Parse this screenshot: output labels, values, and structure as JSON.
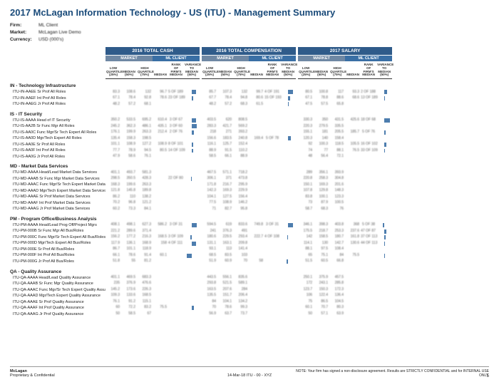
{
  "title": "2017 McLagan Information Technology - US (ITU) - Management Summary",
  "meta": {
    "firmLabel": "Firm:",
    "firm": "ML Client",
    "marketLabel": "Market:",
    "market": "McLagan Live Demo",
    "currencyLabel": "Currency:",
    "currency": "USD (000's)"
  },
  "bands": [
    {
      "title": "2016 TOTAL CASH"
    },
    {
      "title": "2016 TOTAL COMPENSATION"
    },
    {
      "title": "2017 SALARY"
    }
  ],
  "subMarket": "MARKET",
  "subClient": "ML CLIENT",
  "colHeaders": {
    "lowQ": "LOW\nQUARTILE\n(25%)",
    "med": "MEDIAN\n(50%)",
    "highQ": "HIGH\nQUARTILE\n(75%)",
    "clMed": "MEDIAN",
    "rank": "RANK OF\nFIRM'S\nMEDIAN",
    "var": "VARIANCE\nTO MEDIAN\n(50%)"
  },
  "groups": [
    {
      "name": "IN - Technology Infrastructure",
      "roles": [
        {
          "name": "ITU-IN-AAEE Sr Prof All Roles",
          "vals": [
            83.3,
            108.6,
            132.0,
            96.7,
            "5 OF 189",
            "",
            85.7,
            107.3,
            132.0,
            99.7,
            "4 OF 191",
            "",
            80.5,
            100.8,
            117.0,
            93.3,
            "2 OF 188",
            ""
          ],
          "bars": [
            0.25,
            0.32,
            0.18
          ]
        },
        {
          "name": "ITU-IN-AAEF Int Prof All Roles",
          "vals": [
            67.1,
            78.4,
            92.8,
            78.6,
            "23 OF 189",
            "",
            67.7,
            78.4,
            94.8,
            80.6,
            "15 OF 193",
            "",
            67.1,
            78.8,
            88.6,
            68.6,
            "13 OF 189",
            ""
          ],
          "bars": [
            0.1,
            0.12,
            0.06
          ]
        },
        {
          "name": "ITU-IN-AAEG Jr Prof All Roles",
          "vals": [
            48.2,
            57.2,
            68.1,
            "",
            "",
            "",
            48.2,
            57.2,
            68.3,
            61.5,
            "",
            "",
            47.5,
            57.5,
            65.8,
            "",
            "",
            ""
          ],
          "bars": [
            0.0,
            0.05,
            0.0
          ]
        }
      ]
    },
    {
      "name": "IS - IT Security",
      "roles": [
        {
          "name": "ITU-IS-AAAA Head of IT Security",
          "vals": [
            350.2,
            533.5,
            695.2,
            610.4,
            "3 OF 67",
            "",
            403.5,
            620.0,
            808.5,
            "",
            "",
            "",
            330.3,
            350.0,
            431.5,
            425.6,
            "18 OF 68",
            ""
          ],
          "bars": [
            0.28,
            0.0,
            0.35
          ]
        },
        {
          "name": "ITU-IS-AA2B Sr Func Mgr All Roles",
          "vals": [
            245.2,
            362.3,
            486.1,
            435.1,
            "3 OF 60",
            "",
            283.3,
            421.7,
            569.2,
            "",
            "",
            "",
            220.3,
            279.5,
            335.5,
            "",
            "",
            ""
          ],
          "bars": [
            0.3,
            0.0,
            0.0
          ]
        },
        {
          "name": "ITU-IS-AA0C Func Mgr/Sr Tech Expert All Roles",
          "vals": [
            176.1,
            199.9,
            263.3,
            212.4,
            "2 OF 76",
            "",
            218.0,
            271.0,
            393.2,
            "",
            "",
            "",
            155.1,
            181.0,
            205.5,
            185.7,
            "5 OF 76",
            ""
          ],
          "bars": [
            0.15,
            0.0,
            0.1
          ]
        },
        {
          "name": "ITU-IS-AA0D Mgr/Tech Expert All Roles",
          "vals": [
            135.4,
            158.3,
            198.5,
            "",
            "",
            "",
            156.6,
            183.5,
            240.8,
            169.4,
            "5 OF 78",
            "",
            120.3,
            140.0,
            158.4,
            "",
            "",
            ""
          ],
          "bars": [
            0.0,
            0.18,
            0.0
          ]
        },
        {
          "name": "ITU-IS-AA0E Sr Prof All Roles",
          "vals": [
            101.1,
            108.9,
            127.2,
            108.9,
            "8 OF 101",
            "",
            116.1,
            125.7,
            152.4,
            "",
            "",
            "",
            92.0,
            100.3,
            118.5,
            105.5,
            "16 OF 102",
            ""
          ],
          "bars": [
            0.08,
            0.0,
            0.14
          ]
        },
        {
          "name": "ITU-IS-AA0F Int Prof All Roles",
          "vals": [
            77.7,
            78.9,
            94.5,
            80.5,
            "14 OF 109",
            "",
            88.9,
            91.5,
            110.2,
            "",
            "",
            "",
            74.0,
            77.0,
            88.1,
            76.5,
            "33 OF 109",
            ""
          ],
          "bars": [
            0.1,
            0.0,
            0.06
          ]
        },
        {
          "name": "ITU-IS-AA0G Jr Prof All Roles",
          "vals": [
            47.9,
            58.6,
            76.1,
            "",
            "",
            "",
            58.5,
            66.1,
            88.9,
            "",
            "",
            "",
            48.0,
            56.4,
            72.1,
            "",
            "",
            ""
          ],
          "bars": [
            0.0,
            0.0,
            0.0
          ]
        }
      ]
    },
    {
      "name": "MD - Market Data Services",
      "roles": [
        {
          "name": "ITU-MD-AAAA Head/Lead Market Data Services",
          "vals": [
            401.1,
            493.7,
            581.3,
            "",
            "",
            "",
            467.5,
            571.1,
            718.2,
            "",
            "",
            "",
            289.0,
            356.1,
            393.9,
            "",
            "",
            ""
          ],
          "bars": [
            0.0,
            0.0,
            0.0
          ]
        },
        {
          "name": "ITU-MD-AAAB Sr Func Mgr Market Data Services",
          "vals": [
            298.5,
            350.5,
            428.3,
            "",
            "22 OF 80",
            "",
            306.1,
            371.0,
            473.8,
            "",
            "",
            "",
            220.8,
            258.3,
            304.8,
            "",
            "",
            ""
          ],
          "bars": [
            -0.05,
            0.0,
            0.0
          ]
        },
        {
          "name": "ITU-MD-AAAC Func Mgr/Sr Tech Expert Market Data Services",
          "vals": [
            168.3,
            199.6,
            263.3,
            "",
            "",
            "",
            171.8,
            216.7,
            295.9,
            "",
            "",
            "",
            150.1,
            169.3,
            201.6,
            "",
            "",
            ""
          ],
          "bars": [
            0.0,
            0.0,
            0.0
          ]
        },
        {
          "name": "ITU-MD-AAAD Mgr/Tech Expert Market Data Services",
          "vals": [
            121.8,
            145.8,
            189.8,
            "",
            "",
            "",
            142.3,
            169.3,
            229.9,
            "",
            "",
            "",
            107.8,
            129.8,
            148.3,
            "",
            "",
            ""
          ],
          "bars": [
            0.0,
            0.0,
            0.0
          ]
        },
        {
          "name": "ITU-MD-AAAE Sr Prof Market Data Services",
          "vals": [
            86.2,
            110.0,
            138.2,
            "",
            "",
            "",
            104.1,
            127.5,
            156.4,
            "",
            "",
            "",
            83.8,
            100.1,
            123.3,
            "",
            "",
            ""
          ],
          "bars": [
            0.0,
            0.0,
            0.0
          ]
        },
        {
          "name": "ITU-MD-AAAF Int Prof Market Data Services",
          "vals": [
            70.2,
            96.8,
            121.2,
            "",
            "",
            "",
            77.5,
            108.9,
            146.2,
            "",
            "",
            "",
            73.0,
            87.9,
            100.5,
            "",
            "",
            ""
          ],
          "bars": [
            0.0,
            0.0,
            0.0
          ]
        },
        {
          "name": "ITU-MD-AAAG Jr Prof Market Data Services",
          "vals": [
            60.2,
            73.3,
            84.1,
            "",
            "",
            "",
            71.0,
            82.7,
            95.8,
            "",
            "",
            "",
            58.7,
            68.3,
            76.0,
            "",
            "",
            ""
          ],
          "bars": [
            0.0,
            0.0,
            0.0
          ]
        }
      ]
    },
    {
      "name": "PM - Program Office/Business Analysis",
      "roles": [
        {
          "name": "ITU-PM-AAAA Head/Lead Prog Off/Project Mgrs",
          "vals": [
            408.1,
            498.1,
            627.3,
            586.2,
            "3 OF 31",
            "",
            594.5,
            619.0,
            833.6,
            749.8,
            "3 OF 31",
            "",
            346.1,
            398.3,
            403.8,
            368.0,
            "5 OF 38",
            ""
          ],
          "bars": [
            0.3,
            0.32,
            -0.1
          ]
        },
        {
          "name": "ITU-PM-000B Sr Func Mgr All Bus/Roles",
          "vals": [
            221.2,
            289.6,
            371.4,
            "",
            "",
            "",
            241.0,
            376.3,
            491.0,
            "",
            "",
            "",
            175.5,
            218.7,
            253.3,
            237.6,
            "47 OF 87",
            ""
          ],
          "bars": [
            0.0,
            0.0,
            0.14
          ]
        },
        {
          "name": "ITU-PM-000C Func Mgr/Sr Tech Expert All Bus/Roles",
          "vals": [
            156.2,
            177.2,
            216.3,
            168.5,
            "3 OF 109",
            "",
            180.6,
            229.5,
            293.4,
            222.7,
            "4 OF 108",
            "",
            142.0,
            158.5,
            180.7,
            161.8,
            "37 OF 113",
            ""
          ],
          "bars": [
            -0.1,
            -0.06,
            0.08
          ]
        },
        {
          "name": "ITU-PM-000D Mgr/Tech Expert All Bus/Roles",
          "vals": [
            117.9,
            136.1,
            168.9,
            158.0,
            "4 OF 111",
            "",
            131.1,
            163.1,
            209.8,
            "",
            "",
            "",
            114.1,
            130.0,
            142.7,
            130.6,
            "44 OF 113",
            ""
          ],
          "bars": [
            0.25,
            0.0,
            0.06
          ]
        },
        {
          "name": "ITU-PM-000E Sr Prof All Bus/Roles",
          "vals": [
            86.7,
            101.1,
            118.9,
            "",
            "",
            "",
            93.1,
            113.0,
            141.4,
            "",
            "",
            "",
            88.1,
            97.5,
            108.4,
            "",
            "",
            ""
          ],
          "bars": [
            0.0,
            0.0,
            0.0
          ]
        },
        {
          "name": "ITU-PM-000F Int Prof All Bus/Roles",
          "vals": [
            66.1,
            78.6,
            91.4,
            60.1,
            "",
            "",
            68.5,
            83.5,
            103.0,
            "",
            "",
            "",
            65.0,
            75.1,
            84.0,
            75.5,
            "",
            ""
          ],
          "bars": [
            -0.3,
            0.0,
            0.04
          ]
        },
        {
          "name": "ITU-PM-000G Jr Prof All Bus/Roles",
          "vals": [
            51.8,
            55.0,
            81.2,
            "",
            "",
            "",
            51.9,
            60.9,
            70.0,
            58.0,
            "",
            "",
            51.5,
            60.5,
            66.8,
            "",
            "",
            ""
          ],
          "bars": [
            0.0,
            -0.08,
            0.0
          ]
        }
      ]
    },
    {
      "name": "QA - Quality Assurance",
      "roles": [
        {
          "name": "ITU-QA-AAAA Head/Lead Quality Assurance",
          "vals": [
            401.1,
            469.5,
            683.3,
            "",
            "",
            "",
            443.5,
            556.1,
            835.6,
            "",
            "",
            "",
            250.1,
            375.9,
            457.5,
            "",
            "",
            ""
          ],
          "bars": [
            0.0,
            0.0,
            0.0
          ]
        },
        {
          "name": "ITU-QA-AAAB Sr Func Mgr Quality Assurance",
          "vals": [
            235.0,
            376.9,
            476.6,
            "",
            "",
            "",
            293.8,
            521.5,
            589.1,
            "",
            "",
            "",
            172.0,
            243.1,
            285.8,
            "",
            "",
            ""
          ],
          "bars": [
            0.0,
            0.0,
            0.0
          ]
        },
        {
          "name": "ITU-QA-AAAC Func Mgr/Sr Tech Expert Quality Assurance",
          "vals": [
            145.2,
            173.6,
            226.3,
            "",
            "",
            "",
            163.5,
            207.6,
            284.0,
            "",
            "",
            "",
            123.7,
            150.3,
            172.3,
            "",
            "",
            ""
          ],
          "bars": [
            0.0,
            0.0,
            0.0
          ]
        },
        {
          "name": "ITU-QA-AAAD Mgr/Tech Expert Quality Assurance",
          "vals": [
            109.3,
            133.6,
            168.5,
            "",
            "",
            "",
            135.5,
            151.7,
            206.4,
            "",
            "",
            "",
            106.0,
            122.4,
            136.4,
            "",
            "",
            ""
          ],
          "bars": [
            0.0,
            0.0,
            0.0
          ]
        },
        {
          "name": "ITU-QA-AAAE Sr Prof Quality Assurance",
          "vals": [
            76.1,
            91.2,
            115.1,
            "",
            "",
            "",
            84.0,
            104.1,
            134.2,
            "",
            "",
            "",
            75.0,
            86.5,
            104.5,
            "",
            "",
            ""
          ],
          "bars": [
            0.0,
            0.0,
            0.0
          ]
        },
        {
          "name": "ITU-QA-AAAF Int Prof Quality Assurance",
          "vals": [
            60.0,
            72.2,
            83.2,
            75.5,
            "",
            "",
            70.0,
            78.6,
            99.3,
            "",
            "",
            "",
            60.1,
            70.7,
            80.3,
            "",
            "",
            ""
          ],
          "bars": [
            0.12,
            0.0,
            0.0
          ]
        },
        {
          "name": "ITU-QA-AAAG Jr Prof Quality Assurance",
          "vals": [
            50.0,
            58.5,
            67.0,
            "",
            "",
            "",
            56.9,
            63.7,
            73.7,
            "",
            "",
            "",
            50.0,
            57.1,
            63.9,
            "",
            "",
            ""
          ],
          "bars": [
            0.0,
            0.0,
            0.0
          ]
        }
      ]
    }
  ],
  "footer": {
    "left1": "McLagan",
    "left2": "Proprietary & Confidential",
    "center": "14-Mar-18 ITU - 00 - XYZ",
    "note": "NOTE: Your firm has signed a non-disclosure agreement. Results are STRICTLY CONFIDENTIAL and for INTERNAL USE ONLY.",
    "page": "5"
  },
  "colors": {
    "brand": "#1a4b7a",
    "bandHeader": "#2f5b8a",
    "marketHdr": "#6f88a4",
    "clientHdr": "#3a6fa5",
    "bar": "#3a6fa5"
  }
}
